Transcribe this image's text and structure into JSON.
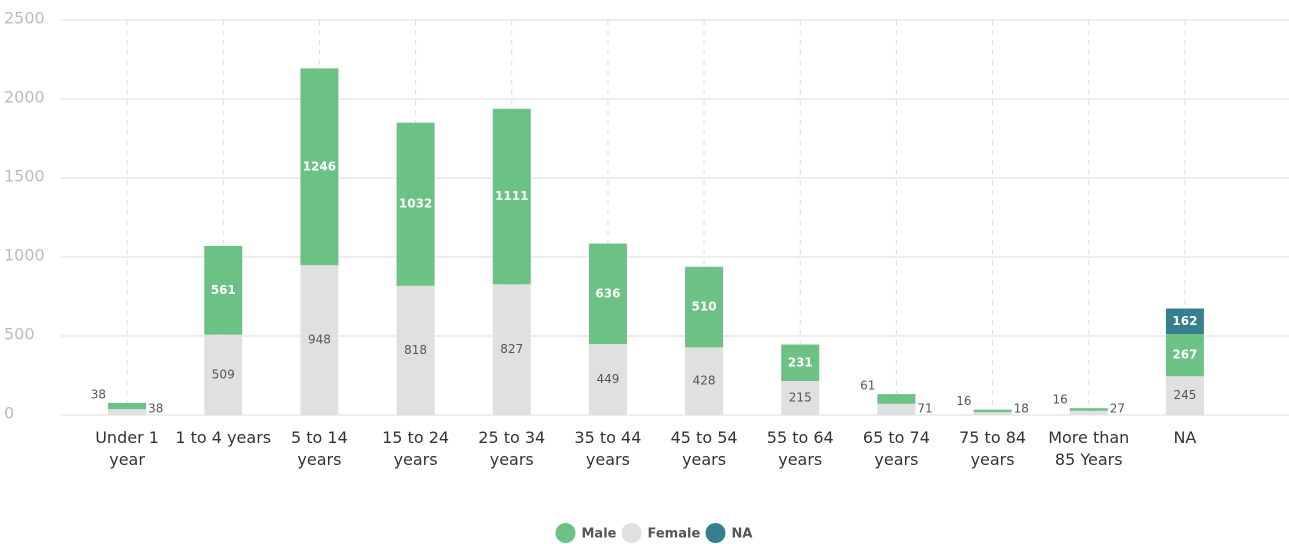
{
  "chart_data": {
    "type": "stacked_bar",
    "categories": [
      "Under 1 year",
      "1 to 4 years",
      "5 to 14 years",
      "15 to 24 years",
      "25 to 34 years",
      "35 to 44 years",
      "45 to 54 years",
      "55 to 64 years",
      "65 to 74 years",
      "75 to 84 years",
      "More than 85 Years",
      "NA"
    ],
    "series": [
      {
        "name": "Female",
        "color": "#e0e0e0",
        "values": [
          38,
          509,
          948,
          818,
          827,
          449,
          428,
          215,
          71,
          18,
          27,
          245
        ]
      },
      {
        "name": "Male",
        "color": "#6cc284",
        "values": [
          38,
          561,
          1246,
          1032,
          1111,
          636,
          510,
          231,
          61,
          16,
          16,
          267
        ]
      },
      {
        "name": "NA",
        "color": "#367f8f",
        "values": [
          null,
          null,
          null,
          null,
          null,
          null,
          null,
          null,
          null,
          null,
          null,
          162
        ]
      }
    ],
    "legend_order": [
      "Male",
      "Female",
      "NA"
    ],
    "ylim": [
      0,
      2500
    ],
    "yticks": [
      0,
      500,
      1000,
      1500,
      2000,
      2500
    ],
    "grid": true
  }
}
